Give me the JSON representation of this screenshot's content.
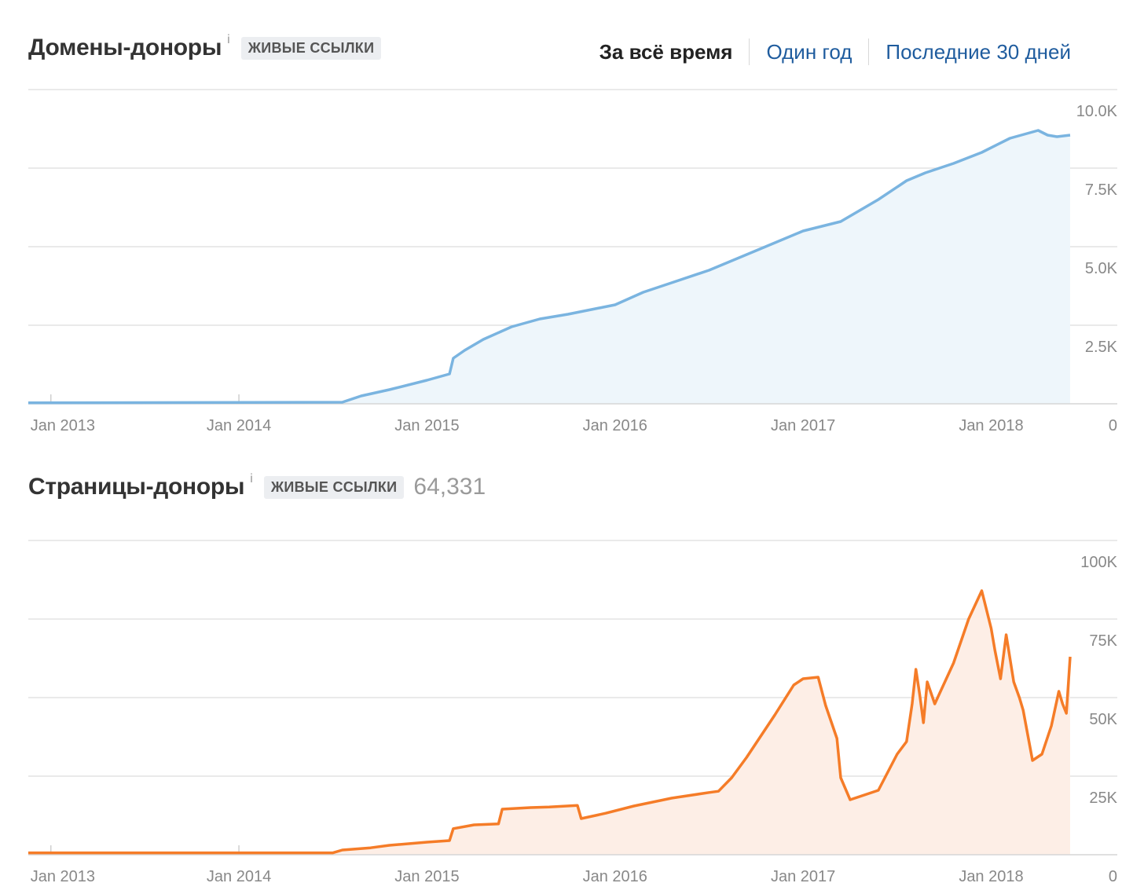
{
  "header": {
    "periods": [
      "За всё время",
      "Один год",
      "Последние 30 дней"
    ],
    "active_period": 0
  },
  "chart_data": [
    {
      "type": "area",
      "title": "Домены-доноры",
      "info": "i",
      "badge": "ЖИВЫЕ ССЫЛКИ",
      "color": "#7ab4e0",
      "fill": "#eef6fb",
      "x_ticks": [
        "Jan 2013",
        "Jan 2014",
        "Jan 2015",
        "Jan 2016",
        "Jan 2017",
        "Jan 2018"
      ],
      "y_ticks": [
        "10.0K",
        "7.5K",
        "5.0K",
        "2.5K"
      ],
      "y_zero_label": "0",
      "ylim": [
        0,
        10000
      ],
      "xlim": [
        2012.88,
        2018.42
      ],
      "grid": true,
      "x": [
        2012.88,
        2014.55,
        2014.65,
        2014.8,
        2015.0,
        2015.12,
        2015.14,
        2015.2,
        2015.3,
        2015.45,
        2015.6,
        2015.75,
        2016.0,
        2016.15,
        2016.3,
        2016.5,
        2016.6,
        2016.8,
        2017.0,
        2017.2,
        2017.4,
        2017.55,
        2017.65,
        2017.8,
        2017.95,
        2018.1,
        2018.25,
        2018.3,
        2018.35,
        2018.42
      ],
      "y": [
        30,
        50,
        250,
        450,
        750,
        950,
        1450,
        1700,
        2050,
        2450,
        2700,
        2850,
        3150,
        3550,
        3850,
        4250,
        4500,
        5000,
        5500,
        5800,
        6500,
        7100,
        7350,
        7650,
        8000,
        8450,
        8700,
        8550,
        8500,
        8550
      ]
    },
    {
      "type": "area",
      "title": "Страницы-доноры",
      "info": "i",
      "badge": "ЖИВЫЕ ССЫЛКИ",
      "count": "64,331",
      "color": "#f57c28",
      "fill": "#fdeee6",
      "x_ticks": [
        "Jan 2013",
        "Jan 2014",
        "Jan 2015",
        "Jan 2016",
        "Jan 2017",
        "Jan 2018"
      ],
      "y_ticks": [
        "100K",
        "75K",
        "50K",
        "25K"
      ],
      "y_zero_label": "0",
      "ylim": [
        0,
        100000
      ],
      "xlim": [
        2012.88,
        2018.42
      ],
      "grid": true,
      "x": [
        2012.88,
        2014.5,
        2014.55,
        2014.7,
        2014.8,
        2015.0,
        2015.12,
        2015.14,
        2015.25,
        2015.38,
        2015.4,
        2015.55,
        2015.65,
        2015.8,
        2015.82,
        2015.95,
        2016.1,
        2016.3,
        2016.5,
        2016.55,
        2016.62,
        2016.7,
        2016.85,
        2016.95,
        2017.0,
        2017.08,
        2017.12,
        2017.18,
        2017.2,
        2017.25,
        2017.4,
        2017.5,
        2017.55,
        2017.58,
        2017.6,
        2017.62,
        2017.64,
        2017.66,
        2017.7,
        2017.8,
        2017.88,
        2017.95,
        2018.0,
        2018.02,
        2018.05,
        2018.08,
        2018.12,
        2018.15,
        2018.17,
        2018.22,
        2018.27,
        2018.32,
        2018.36,
        2018.38,
        2018.4,
        2018.42
      ],
      "y": [
        600,
        600,
        1500,
        2200,
        3000,
        4000,
        4500,
        8300,
        9500,
        9800,
        14500,
        15000,
        15200,
        15700,
        11500,
        13200,
        15500,
        18000,
        19800,
        20200,
        24500,
        31000,
        44500,
        54000,
        56000,
        56500,
        47500,
        37000,
        24500,
        17500,
        20500,
        32000,
        36000,
        48000,
        59000,
        51000,
        42000,
        55000,
        48000,
        61000,
        75000,
        84000,
        72000,
        65000,
        56000,
        70000,
        55000,
        50000,
        46000,
        30000,
        32000,
        41000,
        52000,
        48000,
        45000,
        63000
      ]
    }
  ]
}
